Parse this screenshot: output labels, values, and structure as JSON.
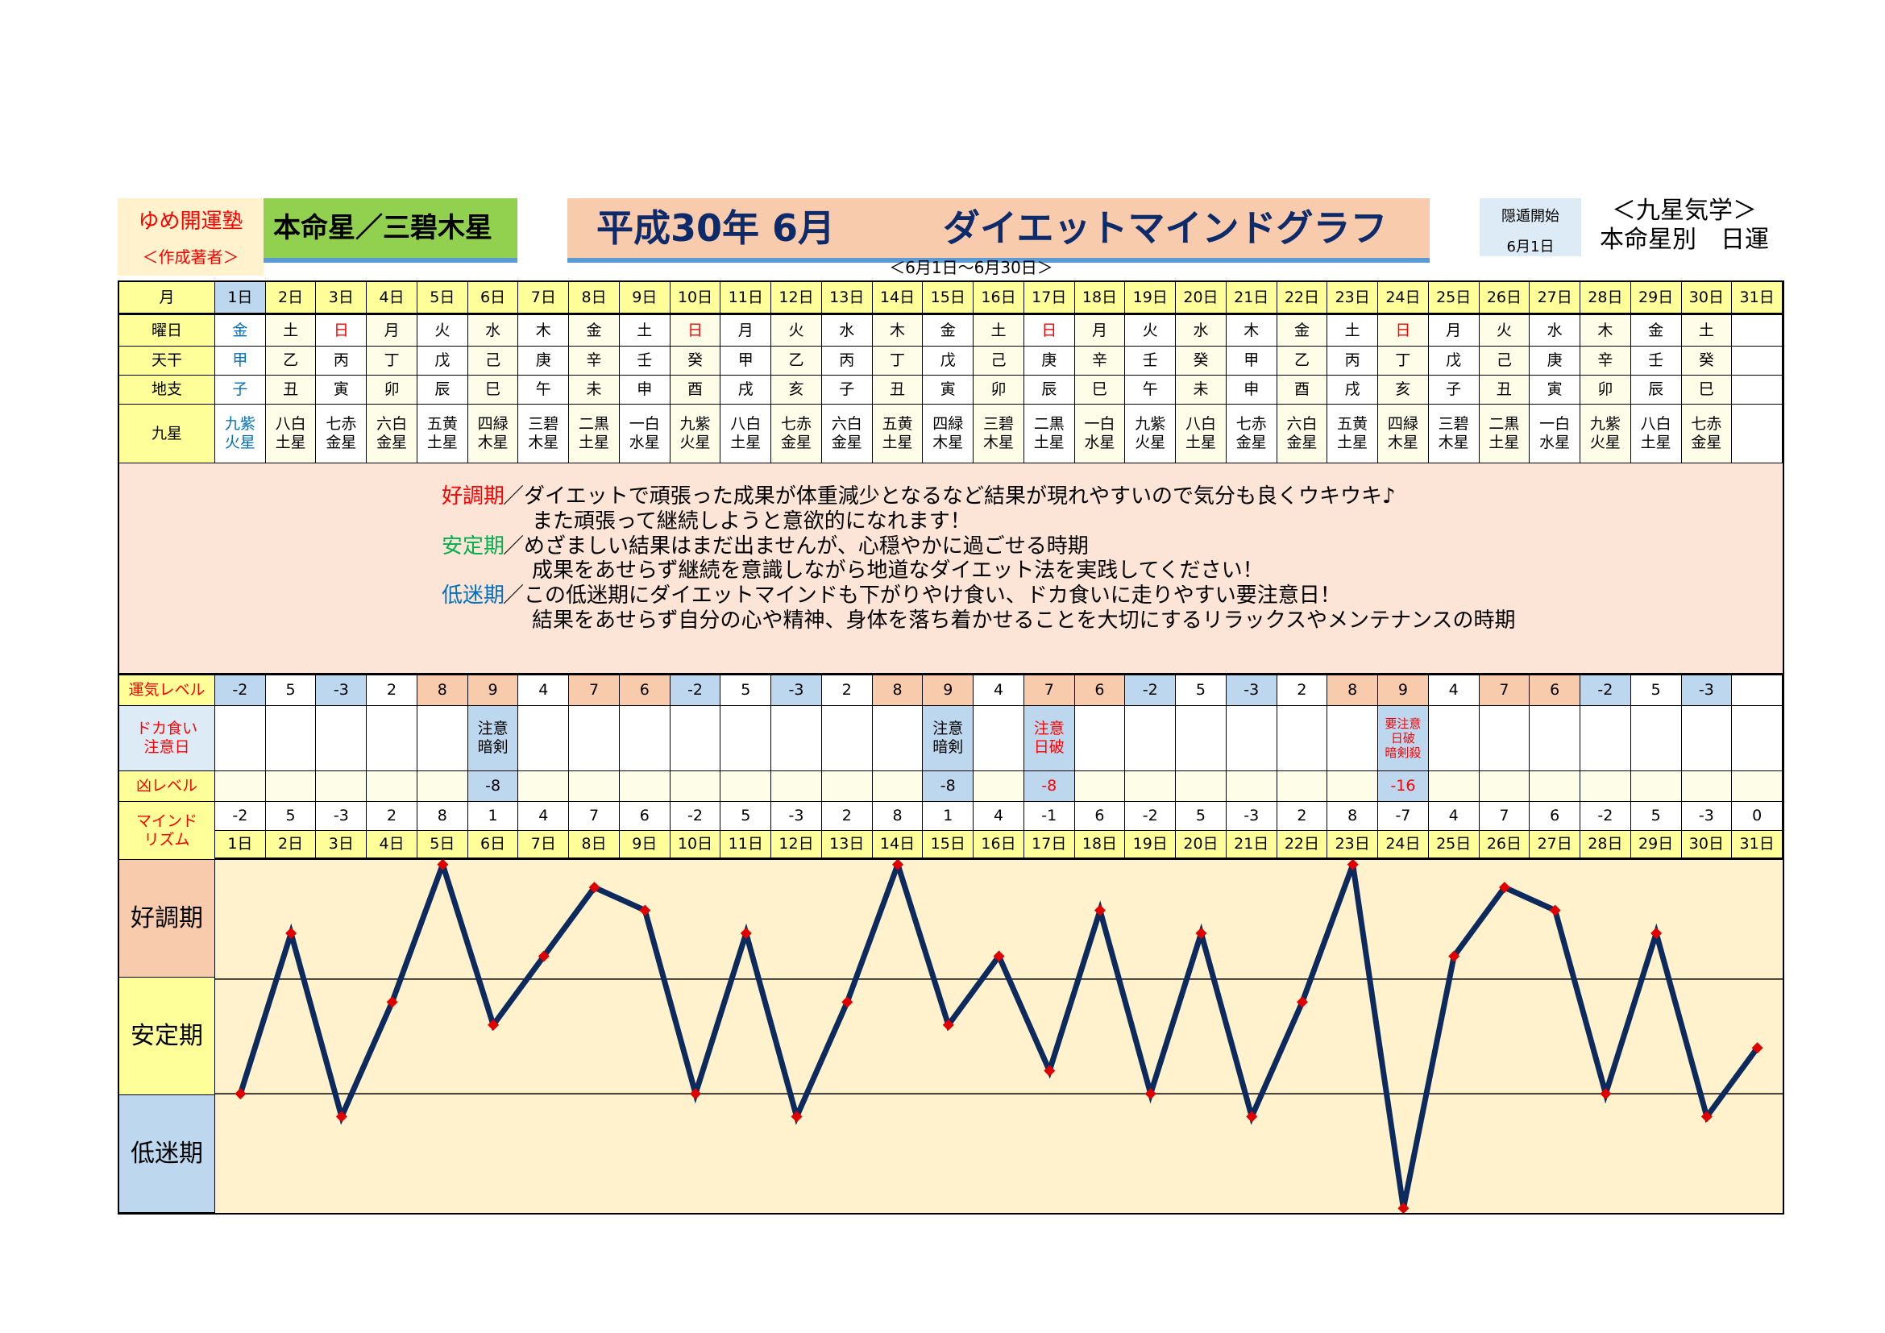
{
  "header": {
    "logo_name": "ゆめ開運塾",
    "logo_author": "＜作成著者＞",
    "honmei": "本命星／三碧木星",
    "title_date": "平成30年 6月",
    "title_main": "ダイエットマインドグラフ",
    "range": "＜6月1日～6月30日＞",
    "onton_label": "隠遁開始",
    "onton_date": "6月1日",
    "kigaku_1": "＜九星気学＞",
    "kigaku_2": "本命星別　日運"
  },
  "labels": {
    "month": "月",
    "weekday": "曜日",
    "tenkan": "天干",
    "chishi": "地支",
    "kyusei": "九星",
    "unki": "運気レベル",
    "dokagui": "ドカ食い\n注意日",
    "kyo": "凶レベル",
    "mind": "マインド\nリズム",
    "band_good": "好調期",
    "band_stable": "安定期",
    "band_low": "低迷期"
  },
  "description": {
    "good_head": "好調期",
    "good_1": "／ダイエットで頑張った成果が体重減少となるなど結果が現れやすいので気分も良くウキウキ♪",
    "good_2": "また頑張って継続しようと意欲的になれます！",
    "stable_head": "安定期",
    "stable_1": "／めざましい結果はまだ出ませんが、心穏やかに過ごせる時期",
    "stable_2": "成果をあせらず継続を意識しながら地道なダイエット法を実践してください！",
    "low_head": "低迷期",
    "low_1": "／この低迷期にダイエットマインドも下がりやけ食い、ドカ食いに走りやすい要注意日！",
    "low_2": "結果をあせらず自分の心や精神、身体を落ち着かせることを大切にするリラックスやメンテナンスの時期"
  },
  "days": [
    "1日",
    "2日",
    "3日",
    "4日",
    "5日",
    "6日",
    "7日",
    "8日",
    "9日",
    "10日",
    "11日",
    "12日",
    "13日",
    "14日",
    "15日",
    "16日",
    "17日",
    "18日",
    "19日",
    "20日",
    "21日",
    "22日",
    "23日",
    "24日",
    "25日",
    "26日",
    "27日",
    "28日",
    "29日",
    "30日",
    "31日"
  ],
  "weekday": [
    "金",
    "土",
    "日",
    "月",
    "火",
    "水",
    "木",
    "金",
    "土",
    "日",
    "月",
    "火",
    "水",
    "木",
    "金",
    "土",
    "日",
    "月",
    "火",
    "水",
    "木",
    "金",
    "土",
    "日",
    "月",
    "火",
    "水",
    "木",
    "金",
    "土",
    ""
  ],
  "tenkan": [
    "甲",
    "乙",
    "丙",
    "丁",
    "戊",
    "己",
    "庚",
    "辛",
    "壬",
    "癸",
    "甲",
    "乙",
    "丙",
    "丁",
    "戊",
    "己",
    "庚",
    "辛",
    "壬",
    "癸",
    "甲",
    "乙",
    "丙",
    "丁",
    "戊",
    "己",
    "庚",
    "辛",
    "壬",
    "癸",
    ""
  ],
  "chishi": [
    "子",
    "丑",
    "寅",
    "卯",
    "辰",
    "巳",
    "午",
    "未",
    "申",
    "酉",
    "戌",
    "亥",
    "子",
    "丑",
    "寅",
    "卯",
    "辰",
    "巳",
    "午",
    "未",
    "申",
    "酉",
    "戌",
    "亥",
    "子",
    "丑",
    "寅",
    "卯",
    "辰",
    "巳",
    ""
  ],
  "kyusei": [
    "九紫\n火星",
    "八白\n土星",
    "七赤\n金星",
    "六白\n金星",
    "五黄\n土星",
    "四緑\n木星",
    "三碧\n木星",
    "二黒\n土星",
    "一白\n水星",
    "九紫\n火星",
    "八白\n土星",
    "七赤\n金星",
    "六白\n金星",
    "五黄\n土星",
    "四緑\n木星",
    "三碧\n木星",
    "二黒\n土星",
    "一白\n水星",
    "九紫\n火星",
    "八白\n土星",
    "七赤\n金星",
    "六白\n金星",
    "五黄\n土星",
    "四緑\n木星",
    "三碧\n木星",
    "二黒\n土星",
    "一白\n水星",
    "九紫\n火星",
    "八白\n土星",
    "七赤\n金星",
    ""
  ],
  "unki": [
    "-2",
    "5",
    "-3",
    "2",
    "8",
    "9",
    "4",
    "7",
    "6",
    "-2",
    "5",
    "-3",
    "2",
    "8",
    "9",
    "4",
    "7",
    "6",
    "-2",
    "5",
    "-3",
    "2",
    "8",
    "9",
    "4",
    "7",
    "6",
    "-2",
    "5",
    "-3",
    ""
  ],
  "dokagui": [
    "",
    "",
    "",
    "",
    "",
    "注意\n暗剣",
    "",
    "",
    "",
    "",
    "",
    "",
    "",
    "",
    "注意\n暗剣",
    "",
    "注意\n日破",
    "",
    "",
    "",
    "",
    "",
    "",
    "要注意\n日破\n暗剣殺",
    "",
    "",
    "",
    "",
    "",
    "",
    ""
  ],
  "dokagui_red": [
    17,
    24
  ],
  "kyo": [
    "",
    "",
    "",
    "",
    "",
    "-8",
    "",
    "",
    "",
    "",
    "",
    "",
    "",
    "",
    "-8",
    "",
    "-8",
    "",
    "",
    "",
    "",
    "",
    "",
    "-16",
    "",
    "",
    "",
    "",
    "",
    "",
    ""
  ],
  "mind": [
    "-2",
    "5",
    "-3",
    "2",
    "8",
    "1",
    "4",
    "7",
    "6",
    "-2",
    "5",
    "-3",
    "2",
    "8",
    "1",
    "4",
    "-1",
    "6",
    "-2",
    "5",
    "-3",
    "2",
    "8",
    "-7",
    "4",
    "7",
    "6",
    "-2",
    "5",
    "-3",
    "0"
  ],
  "colors": {
    "high": "#f8cbad",
    "low": "#bdd7ee",
    "label": "#ffff99",
    "chart_bg": "#fff2cc",
    "line": "#0d2a5e",
    "marker": "#e00000",
    "sunday": "#ff0000",
    "today": "#0070c0"
  },
  "chart_data": {
    "type": "line",
    "categories": [
      "1日",
      "2日",
      "3日",
      "4日",
      "5日",
      "6日",
      "7日",
      "8日",
      "9日",
      "10日",
      "11日",
      "12日",
      "13日",
      "14日",
      "15日",
      "16日",
      "17日",
      "18日",
      "19日",
      "20日",
      "21日",
      "22日",
      "23日",
      "24日",
      "25日",
      "26日",
      "27日",
      "28日",
      "29日",
      "30日",
      "31日"
    ],
    "values": [
      -2,
      5,
      -3,
      2,
      8,
      1,
      4,
      7,
      6,
      -2,
      5,
      -3,
      2,
      8,
      1,
      4,
      -1,
      6,
      -2,
      5,
      -3,
      2,
      8,
      -7,
      4,
      7,
      6,
      -2,
      5,
      -3,
      0
    ],
    "ylim": [
      -7.2,
      8.2
    ],
    "bands": [
      {
        "label": "好調期",
        "from": 3,
        "to": 8.2
      },
      {
        "label": "安定期",
        "from": -2,
        "to": 3
      },
      {
        "label": "低迷期",
        "from": -7.2,
        "to": -2
      }
    ],
    "grid": false,
    "legend": "none"
  }
}
